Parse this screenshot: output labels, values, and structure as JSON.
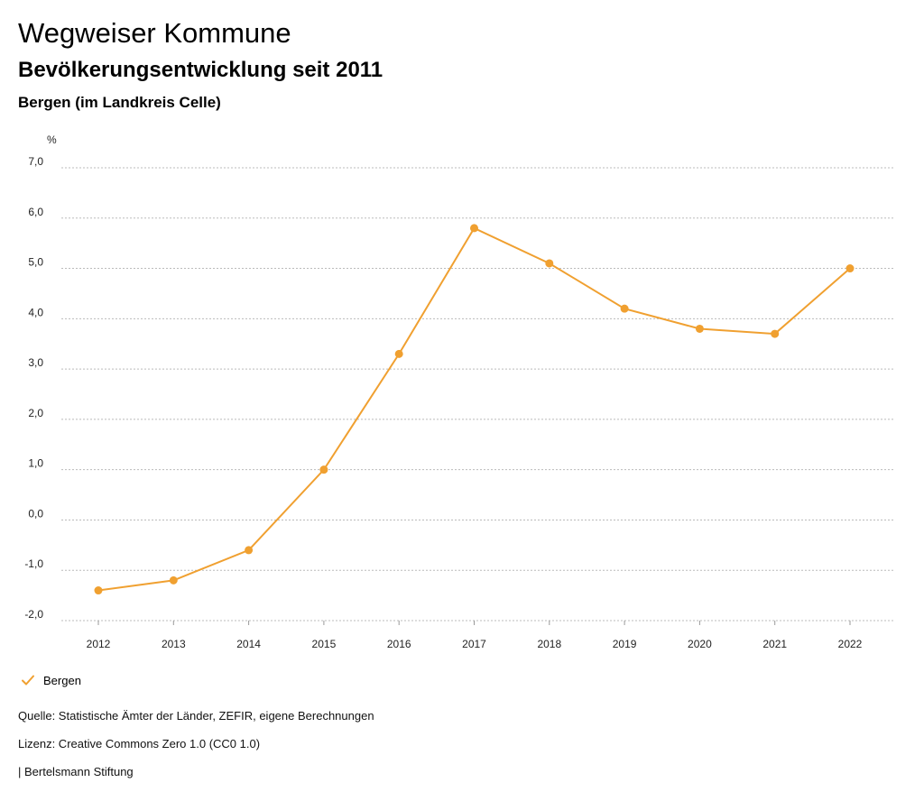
{
  "header": {
    "title": "Wegweiser Kommune",
    "subtitle": "Bevölkerungsentwicklung seit 2011",
    "region": "Bergen (im Landkreis Celle)"
  },
  "legend": {
    "label": "Bergen"
  },
  "footer": {
    "source": "Quelle: Statistische Ämter der Länder, ZEFIR, eigene Berechnungen",
    "license": "Lizenz: Creative Commons Zero 1.0 (CC0 1.0)",
    "org": "| Bertelsmann Stiftung"
  },
  "colors": {
    "series": "#f0a030",
    "grid": "#bbbbbb",
    "axis_text": "#222222"
  },
  "chart_data": {
    "type": "line",
    "title": "Bevölkerungsentwicklung seit 2011",
    "xlabel": "",
    "ylabel": "%",
    "ylim": [
      -2,
      7
    ],
    "yticks": [
      -2,
      -1,
      0,
      1,
      2,
      3,
      4,
      5,
      6,
      7
    ],
    "ytick_labels": [
      "-2,0",
      "-1,0",
      "0,0",
      "1,0",
      "2,0",
      "3,0",
      "4,0",
      "5,0",
      "6,0",
      "7,0"
    ],
    "categories": [
      "2012",
      "2013",
      "2014",
      "2015",
      "2016",
      "2017",
      "2018",
      "2019",
      "2020",
      "2021",
      "2022"
    ],
    "grid": true,
    "legend_position": "bottom-left",
    "series": [
      {
        "name": "Bergen",
        "values": [
          -1.4,
          -1.2,
          -0.6,
          1.0,
          3.3,
          5.8,
          5.1,
          4.2,
          3.8,
          3.7,
          5.0
        ]
      }
    ]
  }
}
